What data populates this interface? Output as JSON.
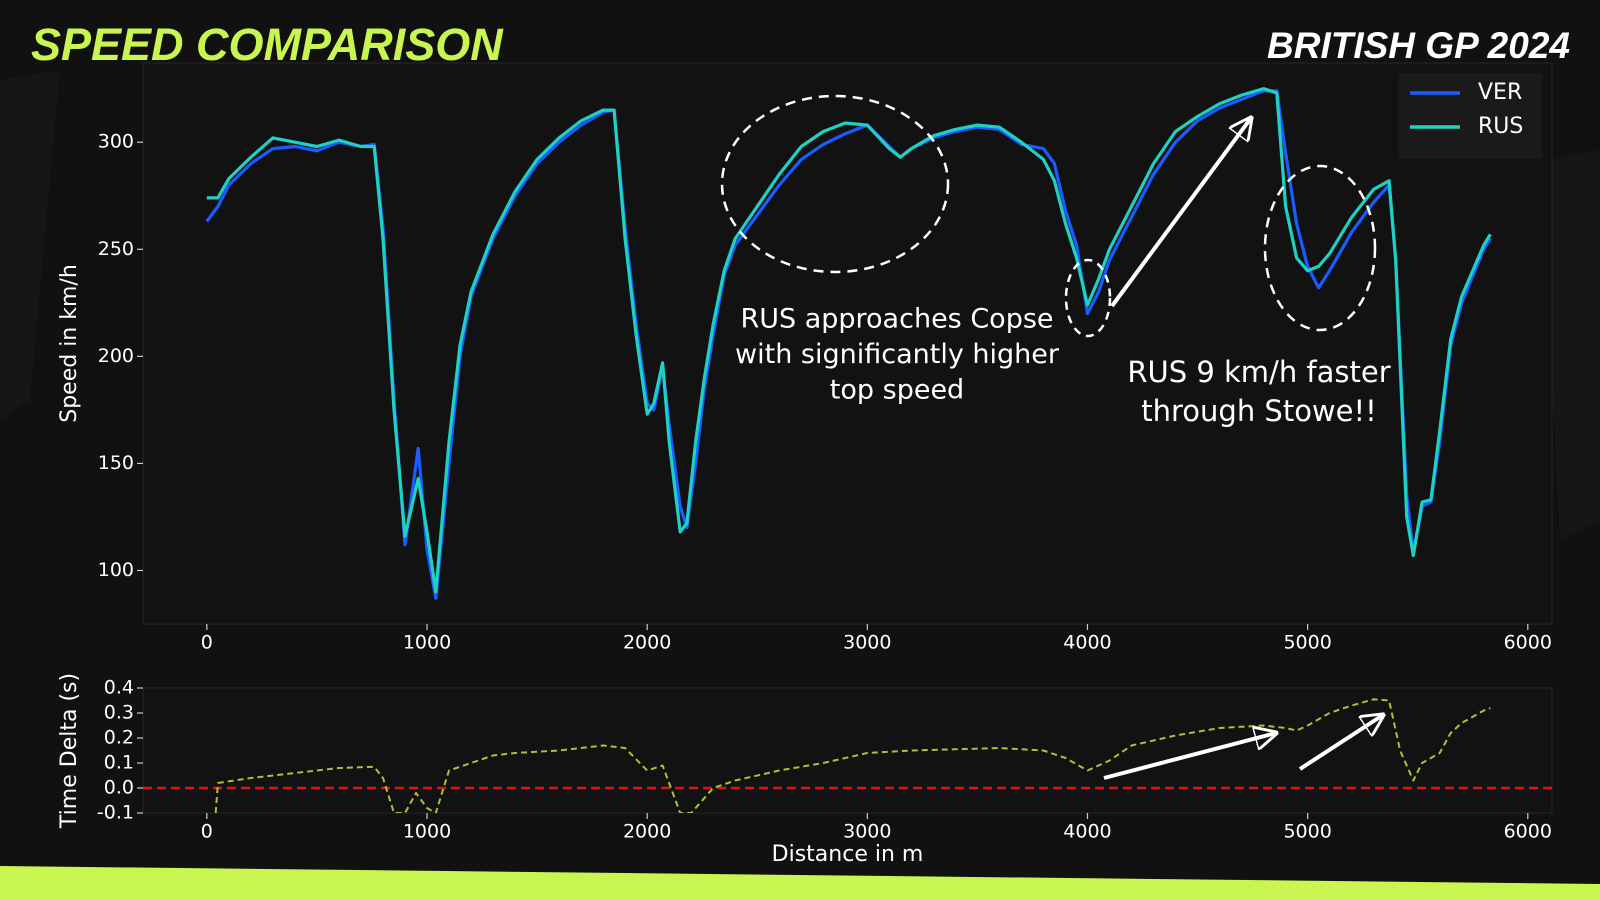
{
  "header": {
    "title": "SPEED COMPARISON",
    "subtitle": "BRITISH GP 2024"
  },
  "chart_data": [
    {
      "type": "line",
      "ylabel": "Speed in km/h",
      "x": [
        0,
        50,
        100,
        200,
        300,
        400,
        500,
        600,
        700,
        760,
        800,
        850,
        900,
        960,
        1000,
        1040,
        1100,
        1150,
        1200,
        1300,
        1400,
        1500,
        1600,
        1700,
        1800,
        1850,
        1900,
        1950,
        2000,
        2030,
        2070,
        2100,
        2150,
        2180,
        2220,
        2260,
        2300,
        2350,
        2400,
        2500,
        2600,
        2700,
        2800,
        2900,
        3000,
        3100,
        3150,
        3200,
        3300,
        3400,
        3500,
        3600,
        3700,
        3800,
        3850,
        3900,
        3950,
        4000,
        4050,
        4100,
        4200,
        4300,
        4400,
        4500,
        4600,
        4700,
        4800,
        4860,
        4900,
        4950,
        5000,
        5050,
        5100,
        5200,
        5300,
        5370,
        5400,
        5450,
        5480,
        5520,
        5560,
        5600,
        5650,
        5700,
        5800,
        5830
      ],
      "series": [
        {
          "name": "VER",
          "color": "#1a5cff",
          "values": [
            263,
            270,
            280,
            290,
            297,
            298,
            296,
            300,
            298,
            299,
            260,
            180,
            112,
            157,
            110,
            87,
            150,
            200,
            228,
            255,
            275,
            290,
            300,
            308,
            314,
            315,
            260,
            215,
            178,
            175,
            195,
            168,
            130,
            120,
            150,
            185,
            210,
            238,
            252,
            266,
            280,
            292,
            299,
            304,
            308,
            298,
            293,
            297,
            302,
            305,
            307,
            306,
            299,
            297,
            290,
            268,
            252,
            220,
            230,
            245,
            265,
            285,
            300,
            310,
            316,
            320,
            324,
            324,
            295,
            262,
            242,
            232,
            240,
            258,
            272,
            280,
            245,
            135,
            108,
            130,
            132,
            160,
            205,
            225,
            250,
            255
          ]
        },
        {
          "name": "RUS",
          "color": "#1fd1c1",
          "values": [
            274,
            274,
            283,
            293,
            302,
            300,
            298,
            301,
            298,
            298,
            255,
            175,
            116,
            143,
            118,
            90,
            160,
            205,
            230,
            257,
            277,
            292,
            302,
            310,
            315,
            315,
            255,
            210,
            173,
            178,
            197,
            160,
            118,
            122,
            160,
            190,
            215,
            240,
            255,
            270,
            285,
            298,
            305,
            309,
            308,
            297,
            293,
            297,
            303,
            306,
            308,
            307,
            300,
            292,
            282,
            262,
            246,
            224,
            236,
            250,
            270,
            290,
            305,
            312,
            318,
            322,
            325,
            323,
            270,
            246,
            240,
            242,
            248,
            265,
            278,
            282,
            245,
            125,
            107,
            132,
            133,
            165,
            208,
            228,
            252,
            257
          ]
        }
      ],
      "xlim": [
        -290,
        6110
      ],
      "xticks": [
        0,
        1000,
        2000,
        3000,
        4000,
        5000,
        6000
      ],
      "ylim": [
        75,
        337
      ],
      "yticks": [
        100,
        150,
        200,
        250,
        300
      ],
      "legend": "upper right",
      "annotations": [
        {
          "lines": [
            "RUS approaches Copse",
            "with significantly higher",
            "top speed"
          ]
        },
        {
          "lines": [
            "RUS 9 km/h faster",
            "through Stowe!!"
          ]
        }
      ]
    },
    {
      "type": "line",
      "xlabel": "Distance in m",
      "ylabel": "Time Delta (s)",
      "x": [
        40,
        50,
        200,
        400,
        600,
        760,
        800,
        850,
        900,
        950,
        1000,
        1040,
        1100,
        1200,
        1300,
        1400,
        1600,
        1800,
        1900,
        2000,
        2070,
        2150,
        2200,
        2300,
        2400,
        2600,
        2800,
        3000,
        3200,
        3400,
        3600,
        3800,
        3900,
        4000,
        4100,
        4200,
        4400,
        4600,
        4800,
        4900,
        4950,
        5000,
        5100,
        5200,
        5300,
        5370,
        5420,
        5480,
        5520,
        5600,
        5650,
        5700,
        5800,
        5830
      ],
      "series": [
        {
          "color": "#a8c23a",
          "linestyle": "dashed",
          "values": [
            -0.1,
            0.02,
            0.04,
            0.06,
            0.08,
            0.085,
            0.04,
            -0.1,
            -0.1,
            -0.02,
            -0.08,
            -0.1,
            0.07,
            0.1,
            0.13,
            0.14,
            0.15,
            0.17,
            0.16,
            0.07,
            0.09,
            -0.1,
            -0.1,
            0.0,
            0.03,
            0.07,
            0.1,
            0.14,
            0.15,
            0.155,
            0.16,
            0.15,
            0.12,
            0.07,
            0.11,
            0.17,
            0.21,
            0.24,
            0.25,
            0.24,
            0.23,
            0.25,
            0.3,
            0.33,
            0.355,
            0.35,
            0.15,
            0.03,
            0.1,
            0.14,
            0.22,
            0.26,
            0.31,
            0.32
          ]
        }
      ],
      "hline": {
        "value": 0,
        "color": "#e01010"
      },
      "xlim": [
        -290,
        6110
      ],
      "xticks": [
        0,
        1000,
        2000,
        3000,
        4000,
        5000,
        6000
      ],
      "ylim": [
        -0.1,
        0.4
      ],
      "yticks": [
        0.4,
        0.3,
        0.2,
        0.1,
        {
          "value": 0,
          "label": "0.0"
        },
        -0.1
      ]
    }
  ]
}
